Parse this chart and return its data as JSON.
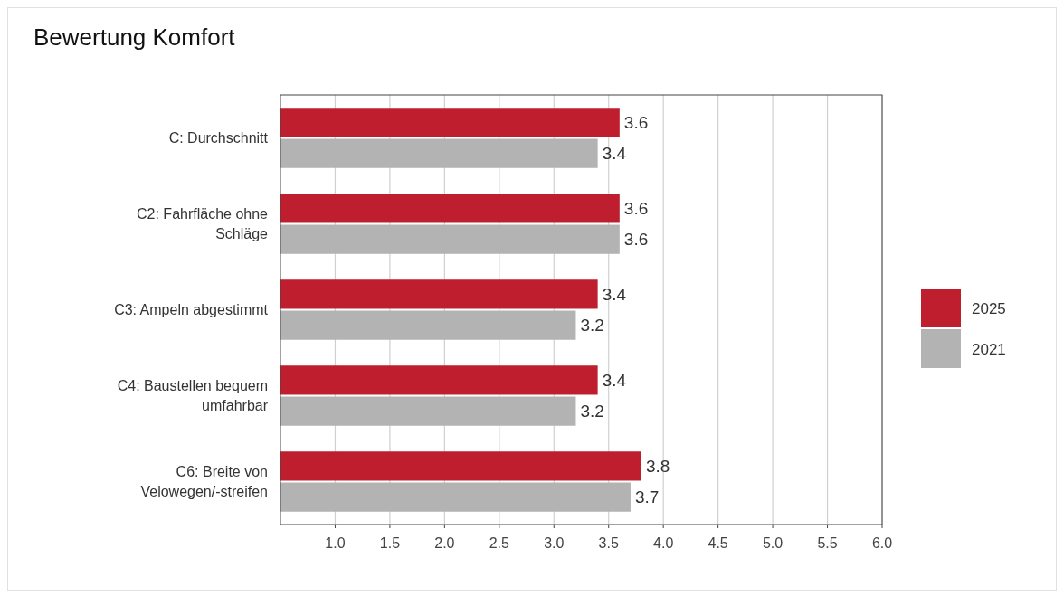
{
  "chart_data": {
    "type": "bar",
    "orientation": "horizontal",
    "title": "Bewertung Komfort",
    "categories": [
      "C: Durchschnitt",
      "C2: Fahrfläche ohne Schläge",
      "C3: Ampeln abgestimmt",
      "C4: Baustellen bequem umfahrbar",
      "C6: Breite von Velowegen/-streifen"
    ],
    "series": [
      {
        "name": "2025",
        "color": "#be1e2d",
        "values": [
          3.6,
          3.6,
          3.4,
          3.4,
          3.8
        ]
      },
      {
        "name": "2021",
        "color": "#b3b3b3",
        "values": [
          3.4,
          3.6,
          3.2,
          3.2,
          3.7
        ]
      }
    ],
    "xlim": [
      0.5,
      6.0
    ],
    "xticks": [
      {
        "value": 1,
        "label": "1.0"
      },
      {
        "value": 1.5,
        "label": "1.5"
      },
      {
        "value": 2,
        "label": "2.0"
      },
      {
        "value": 2.5,
        "label": "2.5"
      },
      {
        "value": 3,
        "label": "3.0"
      },
      {
        "value": 3.5,
        "label": "3.5"
      },
      {
        "value": 4,
        "label": "4.0"
      },
      {
        "value": 4.5,
        "label": "4.5"
      },
      {
        "value": 5,
        "label": "5.0"
      },
      {
        "value": 5.5,
        "label": "5.5"
      },
      {
        "value": 6,
        "label": "6.0"
      }
    ],
    "grid": "x",
    "legend": "right",
    "data_labels": true
  }
}
